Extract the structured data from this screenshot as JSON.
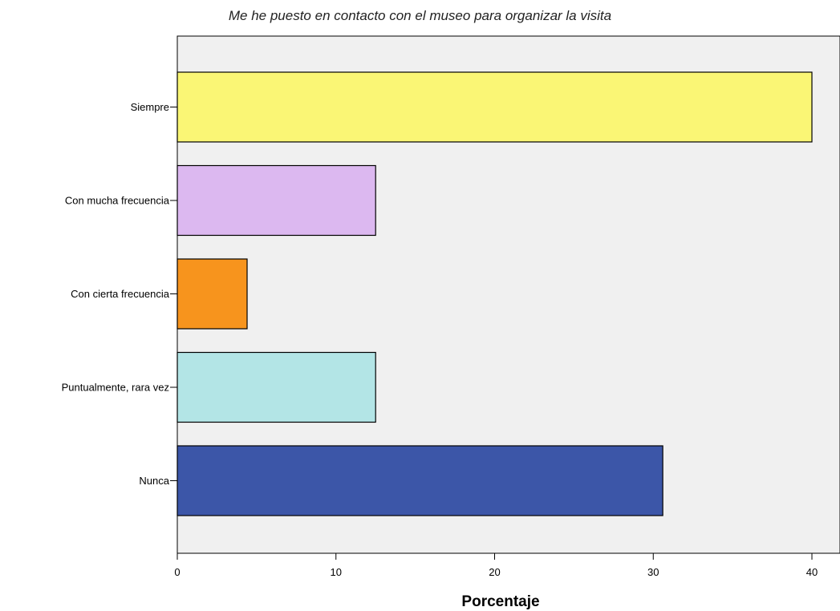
{
  "chart_data": {
    "type": "bar",
    "orientation": "horizontal",
    "title": "Me he puesto en contacto con el museo para organizar la visita",
    "xlabel": "Porcentaje",
    "ylabel": "",
    "categories": [
      "Siempre",
      "Con mucha frecuencia",
      "Con cierta frecuencia",
      "Puntualmente, rara vez",
      "Nunca"
    ],
    "values": [
      40.0,
      12.5,
      4.4,
      12.5,
      30.6
    ],
    "colors": [
      "#faf675",
      "#dcb8f0",
      "#f7941d",
      "#b3e5e6",
      "#3c56a8"
    ],
    "xlim": [
      0,
      41.5
    ],
    "xticks": [
      0,
      10,
      20,
      30,
      40
    ],
    "grid": false,
    "plot_background": "#f0f0f0"
  }
}
